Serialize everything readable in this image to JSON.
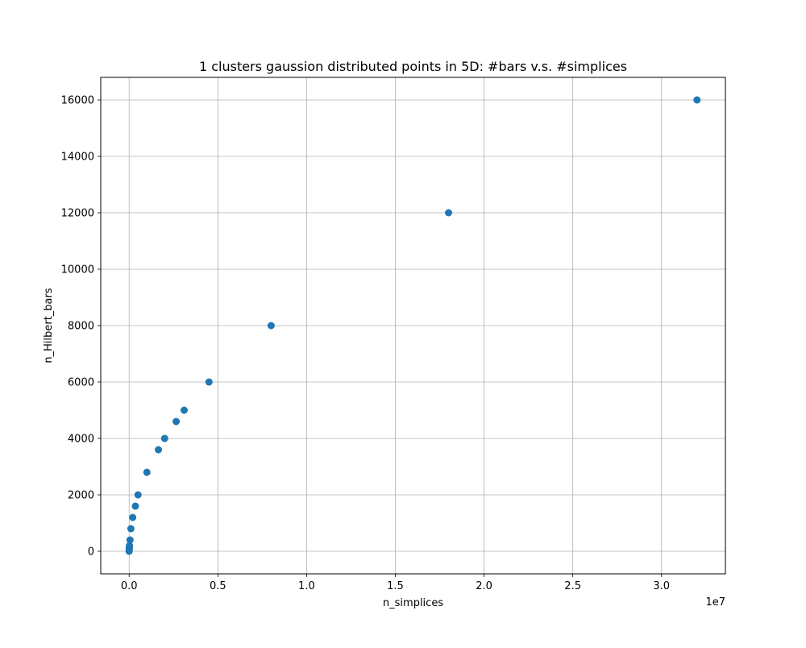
{
  "chart_data": {
    "type": "scatter",
    "title": "1 clusters gaussion distributed points in 5D: #bars v.s. #simplices",
    "xlabel": "n_simplices",
    "ylabel": "n_Hilbert_bars",
    "x_offset_label": "1e7",
    "x_scale": 10000000,
    "xlim": [
      -1600000,
      33600000
    ],
    "ylim": [
      -800,
      16800
    ],
    "xticks": [
      0,
      5000000,
      10000000,
      15000000,
      20000000,
      25000000,
      30000000
    ],
    "xtick_labels": [
      "0.0",
      "0.5",
      "1.0",
      "1.5",
      "2.0",
      "2.5",
      "3.0"
    ],
    "yticks": [
      0,
      2000,
      4000,
      6000,
      8000,
      10000,
      12000,
      14000,
      16000
    ],
    "ytick_labels": [
      "0",
      "2000",
      "4000",
      "6000",
      "8000",
      "10000",
      "12000",
      "14000",
      "16000"
    ],
    "grid": true,
    "marker_color": "#1f77b4",
    "points": [
      {
        "x": 0,
        "y": 0
      },
      {
        "x": 2000,
        "y": 50
      },
      {
        "x": 5000,
        "y": 100
      },
      {
        "x": 10000,
        "y": 150
      },
      {
        "x": 20000,
        "y": 200
      },
      {
        "x": 50000,
        "y": 400
      },
      {
        "x": 100000,
        "y": 800
      },
      {
        "x": 200000,
        "y": 1200
      },
      {
        "x": 350000,
        "y": 1600
      },
      {
        "x": 500000,
        "y": 2000
      },
      {
        "x": 1000000,
        "y": 2800
      },
      {
        "x": 1650000,
        "y": 3600
      },
      {
        "x": 2000000,
        "y": 4000
      },
      {
        "x": 2650000,
        "y": 4600
      },
      {
        "x": 3100000,
        "y": 5000
      },
      {
        "x": 4500000,
        "y": 6000
      },
      {
        "x": 8000000,
        "y": 8000
      },
      {
        "x": 18000000,
        "y": 12000
      },
      {
        "x": 32000000,
        "y": 16000
      }
    ]
  }
}
